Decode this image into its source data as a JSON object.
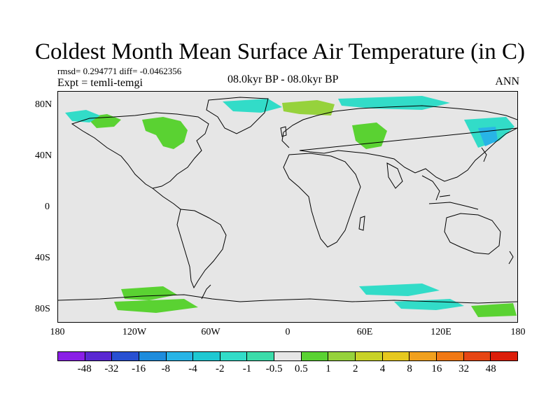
{
  "title": "Coldest Month Mean Surface Air Temperature (in C)",
  "stats": {
    "rmsd_text": "rmsd= 0.294771 diff= -0.0462356"
  },
  "experiment": "Expt = temli-temgi",
  "period": "08.0kyr BP - 08.0kyr BP",
  "season": "ANN",
  "map": {
    "projection": "cylindrical equidistant",
    "lon_range": [
      -180,
      180
    ],
    "lat_range": [
      -90,
      90
    ],
    "background_color": "#e6e6e6",
    "coastline_color": "#000000",
    "y_ticks": [
      "80N",
      "40N",
      "0",
      "40S",
      "80S"
    ],
    "x_ticks": [
      "180",
      "120W",
      "60W",
      "0",
      "60E",
      "120E",
      "180"
    ]
  },
  "colorbar": {
    "labels": [
      "-48",
      "-32",
      "-16",
      "-8",
      "-4",
      "-2",
      "-1",
      "-0.5",
      "0.5",
      "1",
      "2",
      "4",
      "8",
      "16",
      "32",
      "48"
    ],
    "colors": [
      "#8a1ee6",
      "#5a28d2",
      "#2850d2",
      "#1e8cdc",
      "#28b4e6",
      "#1ec8d2",
      "#32dcc8",
      "#3cdcaa",
      "#e6e6e6",
      "#5ad232",
      "#96d23c",
      "#c8d228",
      "#e6c81e",
      "#f0a01e",
      "#f07814",
      "#e64614",
      "#dc1e0a"
    ]
  },
  "anomaly_regions": [
    {
      "name": "arctic-canada",
      "level": "1",
      "color": "#5ad232"
    },
    {
      "name": "greenland-north",
      "level": "-1",
      "color": "#32dcc8"
    },
    {
      "name": "scandinavia",
      "level": "2",
      "color": "#96d23c"
    },
    {
      "name": "west-russia",
      "level": "1",
      "color": "#5ad232"
    },
    {
      "name": "east-siberia",
      "level": "-1",
      "color": "#32dcc8"
    },
    {
      "name": "antarctica-pacific",
      "level": "1",
      "color": "#5ad232"
    },
    {
      "name": "antarctica-east",
      "level": "-1",
      "color": "#32dcc8"
    }
  ]
}
